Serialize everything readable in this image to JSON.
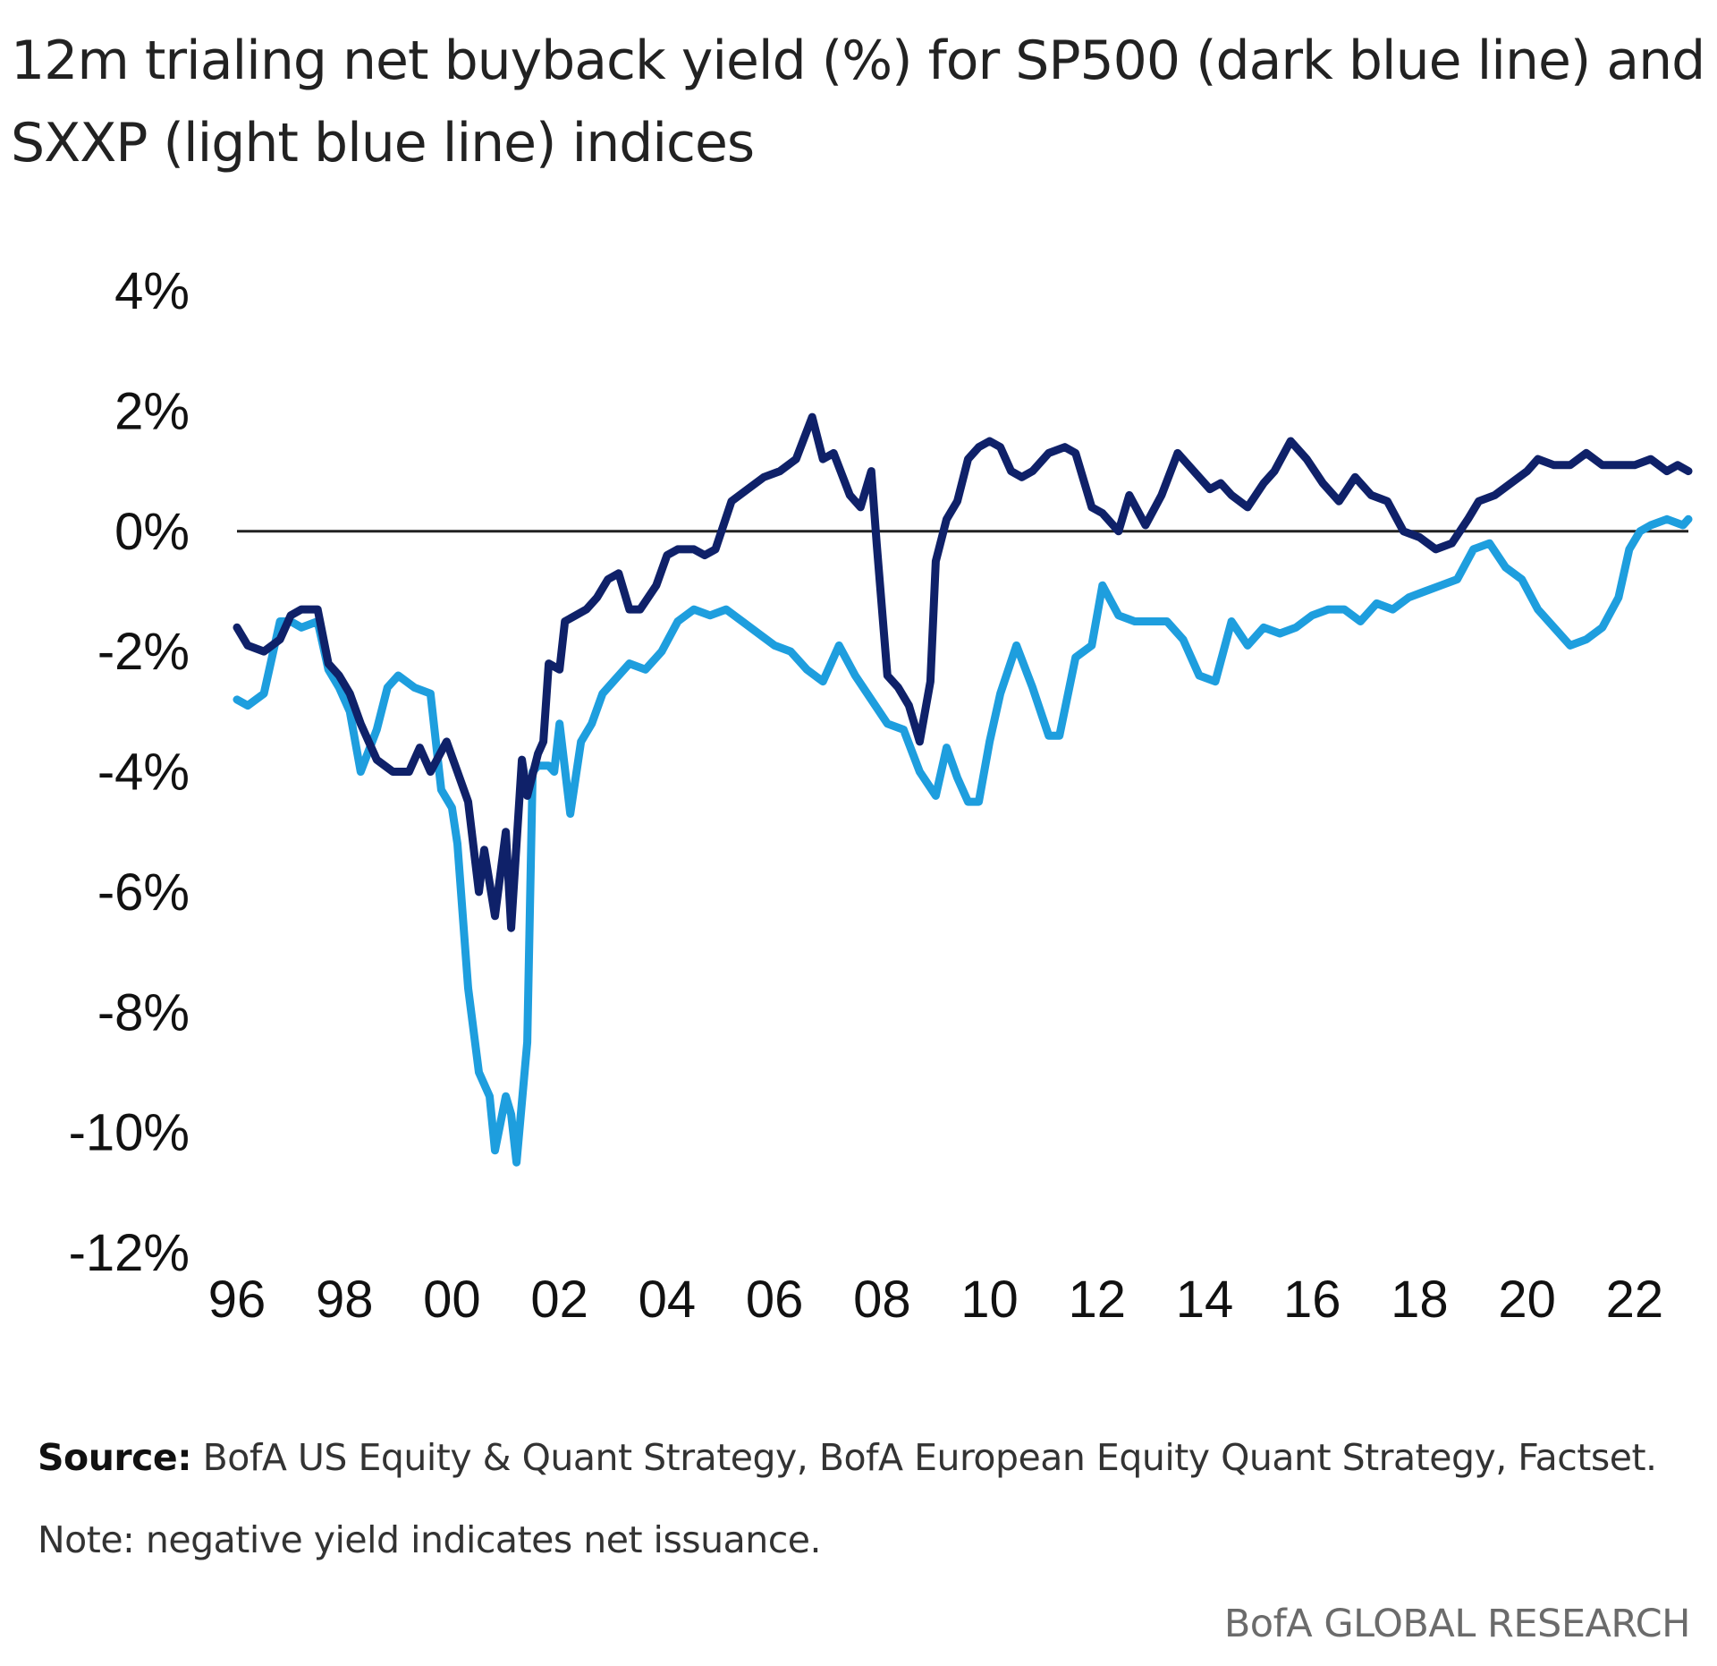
{
  "header": {
    "title": "",
    "subtitle": "12m trialing net buyback yield (%) for SP500 (dark blue line) and SXXP (light blue line) indices"
  },
  "footer": {
    "source_label": "Source:",
    "source_text": "BofA US Equity & Quant Strategy, BofA European Equity Quant Strategy, Factset.",
    "note": "Note: negative yield indicates net issuance.",
    "brand": "BofA GLOBAL RESEARCH"
  },
  "colors": {
    "sp500": "#0f2169",
    "sxxp": "#1e9ede",
    "zero_line": "#222222",
    "axis_text": "#111111"
  },
  "chart_data": {
    "type": "line",
    "title": "",
    "xlabel": "",
    "ylabel": "",
    "x_ticks": [
      "96",
      "98",
      "00",
      "02",
      "04",
      "06",
      "08",
      "10",
      "12",
      "14",
      "16",
      "18",
      "20",
      "22"
    ],
    "y_ticks": [
      "4%",
      "2%",
      "0%",
      "-2%",
      "-4%",
      "-6%",
      "-8%",
      "-10%",
      "-12%"
    ],
    "xlim": [
      1996.0,
      2023.0
    ],
    "ylim": [
      -12,
      4
    ],
    "grid": false,
    "legend": "none",
    "reference_line_y": 0,
    "series": [
      {
        "key": "sp500",
        "x": [
          1996.0,
          1996.2,
          1996.5,
          1996.8,
          1997.0,
          1997.2,
          1997.5,
          1997.7,
          1997.9,
          1998.1,
          1998.3,
          1998.6,
          1998.9,
          1999.2,
          1999.4,
          1999.6,
          1999.9,
          2000.1,
          2000.3,
          2000.5,
          2000.6,
          2000.8,
          2001.0,
          2001.1,
          2001.3,
          2001.4,
          2001.6,
          2001.7,
          2001.8,
          2002.0,
          2002.1,
          2002.3,
          2002.5,
          2002.7,
          2002.9,
          2003.1,
          2003.3,
          2003.5,
          2003.8,
          2004.0,
          2004.2,
          2004.5,
          2004.7,
          2004.9,
          2005.2,
          2005.5,
          2005.8,
          2006.1,
          2006.4,
          2006.7,
          2006.9,
          2007.1,
          2007.4,
          2007.6,
          2007.8,
          2007.9,
          2008.1,
          2008.3,
          2008.5,
          2008.7,
          2008.9,
          2009.0,
          2009.2,
          2009.4,
          2009.6,
          2009.8,
          2010.0,
          2010.2,
          2010.4,
          2010.6,
          2010.8,
          2011.1,
          2011.4,
          2011.6,
          2011.9,
          2012.1,
          2012.4,
          2012.6,
          2012.9,
          2013.2,
          2013.5,
          2013.8,
          2014.1,
          2014.3,
          2014.5,
          2014.8,
          2015.1,
          2015.3,
          2015.6,
          2015.9,
          2016.2,
          2016.5,
          2016.8,
          2017.1,
          2017.4,
          2017.7,
          2018.0,
          2018.3,
          2018.6,
          2018.9,
          2019.1,
          2019.4,
          2019.7,
          2020.0,
          2020.2,
          2020.5,
          2020.8,
          2021.1,
          2021.4,
          2021.7,
          2022.0,
          2022.3,
          2022.6,
          2022.8,
          2023.0
        ],
        "values": [
          -1.6,
          -1.9,
          -2.0,
          -1.8,
          -1.4,
          -1.3,
          -1.3,
          -2.2,
          -2.4,
          -2.7,
          -3.2,
          -3.8,
          -4.0,
          -4.0,
          -3.6,
          -4.0,
          -3.5,
          -4.0,
          -4.5,
          -6.0,
          -5.3,
          -6.4,
          -5.0,
          -6.6,
          -3.8,
          -4.4,
          -3.7,
          -3.5,
          -2.2,
          -2.3,
          -1.5,
          -1.4,
          -1.3,
          -1.1,
          -0.8,
          -0.7,
          -1.3,
          -1.3,
          -0.9,
          -0.4,
          -0.3,
          -0.3,
          -0.4,
          -0.3,
          0.5,
          0.7,
          0.9,
          1.0,
          1.2,
          1.9,
          1.2,
          1.3,
          0.6,
          0.4,
          1.0,
          -0.2,
          -2.4,
          -2.6,
          -2.9,
          -3.5,
          -2.5,
          -0.5,
          0.2,
          0.5,
          1.2,
          1.4,
          1.5,
          1.4,
          1.0,
          0.9,
          1.0,
          1.3,
          1.4,
          1.3,
          0.4,
          0.3,
          0.0,
          0.6,
          0.1,
          0.6,
          1.3,
          1.0,
          0.7,
          0.8,
          0.6,
          0.4,
          0.8,
          1.0,
          1.5,
          1.2,
          0.8,
          0.5,
          0.9,
          0.6,
          0.5,
          0.0,
          -0.1,
          -0.3,
          -0.2,
          0.2,
          0.5,
          0.6,
          0.8,
          1.0,
          1.2,
          1.1,
          1.1,
          1.3,
          1.1,
          1.1,
          1.1,
          1.2,
          1.0,
          1.1,
          1.0
        ]
      },
      {
        "key": "sxxp",
        "x": [
          1996.0,
          1996.2,
          1996.5,
          1996.8,
          1997.0,
          1997.2,
          1997.5,
          1997.7,
          1997.9,
          1998.1,
          1998.3,
          1998.6,
          1998.8,
          1999.0,
          1999.3,
          1999.6,
          1999.8,
          2000.0,
          2000.1,
          2000.3,
          2000.5,
          2000.7,
          2000.8,
          2001.0,
          2001.1,
          2001.2,
          2001.4,
          2001.5,
          2001.6,
          2001.8,
          2001.9,
          2002.0,
          2002.2,
          2002.4,
          2002.6,
          2002.8,
          2003.0,
          2003.3,
          2003.6,
          2003.9,
          2004.2,
          2004.5,
          2004.8,
          2005.1,
          2005.4,
          2005.7,
          2006.0,
          2006.3,
          2006.6,
          2006.9,
          2007.2,
          2007.5,
          2007.8,
          2008.1,
          2008.4,
          2008.7,
          2009.0,
          2009.2,
          2009.4,
          2009.6,
          2009.8,
          2010.0,
          2010.2,
          2010.5,
          2010.8,
          2011.1,
          2011.3,
          2011.6,
          2011.9,
          2012.1,
          2012.4,
          2012.7,
          2013.0,
          2013.3,
          2013.6,
          2013.9,
          2014.2,
          2014.5,
          2014.8,
          2015.1,
          2015.4,
          2015.7,
          2016.0,
          2016.3,
          2016.6,
          2016.9,
          2017.2,
          2017.5,
          2017.8,
          2018.1,
          2018.4,
          2018.7,
          2019.0,
          2019.3,
          2019.6,
          2019.9,
          2020.2,
          2020.5,
          2020.8,
          2021.1,
          2021.4,
          2021.7,
          2021.9,
          2022.1,
          2022.3,
          2022.6,
          2022.9,
          2023.0
        ],
        "values": [
          -2.8,
          -2.9,
          -2.7,
          -1.5,
          -1.5,
          -1.6,
          -1.5,
          -2.3,
          -2.6,
          -3.0,
          -4.0,
          -3.3,
          -2.6,
          -2.4,
          -2.6,
          -2.7,
          -4.3,
          -4.6,
          -5.2,
          -7.6,
          -9.0,
          -9.4,
          -10.3,
          -9.4,
          -9.7,
          -10.5,
          -8.5,
          -4.0,
          -3.9,
          -3.9,
          -4.0,
          -3.2,
          -4.7,
          -3.5,
          -3.2,
          -2.7,
          -2.5,
          -2.2,
          -2.3,
          -2.0,
          -1.5,
          -1.3,
          -1.4,
          -1.3,
          -1.5,
          -1.7,
          -1.9,
          -2.0,
          -2.3,
          -2.5,
          -1.9,
          -2.4,
          -2.8,
          -3.2,
          -3.3,
          -4.0,
          -4.4,
          -3.6,
          -4.1,
          -4.5,
          -4.5,
          -3.5,
          -2.7,
          -1.9,
          -2.6,
          -3.4,
          -3.4,
          -2.1,
          -1.9,
          -0.9,
          -1.4,
          -1.5,
          -1.5,
          -1.5,
          -1.8,
          -2.4,
          -2.5,
          -1.5,
          -1.9,
          -1.6,
          -1.7,
          -1.6,
          -1.4,
          -1.3,
          -1.3,
          -1.5,
          -1.2,
          -1.3,
          -1.1,
          -1.0,
          -0.9,
          -0.8,
          -0.3,
          -0.2,
          -0.6,
          -0.8,
          -1.3,
          -1.6,
          -1.9,
          -1.8,
          -1.6,
          -1.1,
          -0.3,
          0.0,
          0.1,
          0.2,
          0.1,
          0.2
        ]
      }
    ]
  }
}
